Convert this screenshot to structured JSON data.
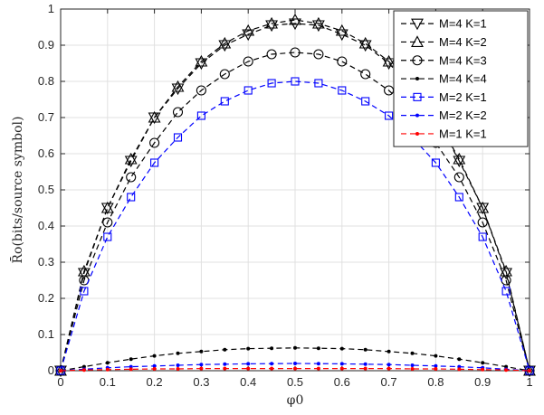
{
  "chart_data": {
    "type": "line",
    "xlabel": "φ0",
    "ylabel": "R̄o(bits/source symbol)",
    "xlim": [
      0,
      1
    ],
    "ylim": [
      0,
      1
    ],
    "xticks": [
      0,
      0.1,
      0.2,
      0.3,
      0.4,
      0.5,
      0.6,
      0.7,
      0.8,
      0.9,
      1
    ],
    "yticks": [
      0,
      0.1,
      0.2,
      0.3,
      0.4,
      0.5,
      0.6,
      0.7,
      0.8,
      0.9,
      1
    ],
    "grid": true,
    "legend_position": "top-right",
    "x": [
      0,
      0.05,
      0.1,
      0.15,
      0.2,
      0.25,
      0.3,
      0.35,
      0.4,
      0.45,
      0.5,
      0.55,
      0.6,
      0.65,
      0.7,
      0.75,
      0.8,
      0.85,
      0.9,
      0.95,
      1
    ],
    "series": [
      {
        "name": "M=4 K=1",
        "color": "#000000",
        "marker": "triangle-down",
        "values": [
          0,
          0.27,
          0.45,
          0.58,
          0.7,
          0.78,
          0.85,
          0.9,
          0.93,
          0.955,
          0.96,
          0.955,
          0.93,
          0.9,
          0.85,
          0.78,
          0.7,
          0.58,
          0.45,
          0.27,
          0
        ]
      },
      {
        "name": "M=4 K=2",
        "color": "#000000",
        "marker": "triangle-up",
        "values": [
          0,
          0.275,
          0.45,
          0.585,
          0.7,
          0.785,
          0.855,
          0.905,
          0.94,
          0.96,
          0.97,
          0.96,
          0.94,
          0.905,
          0.855,
          0.785,
          0.7,
          0.585,
          0.45,
          0.275,
          0
        ]
      },
      {
        "name": "M=4 K=3",
        "color": "#000000",
        "marker": "circle",
        "values": [
          0,
          0.25,
          0.41,
          0.535,
          0.63,
          0.715,
          0.775,
          0.82,
          0.855,
          0.875,
          0.88,
          0.875,
          0.855,
          0.82,
          0.775,
          0.715,
          0.63,
          0.535,
          0.41,
          0.25,
          0
        ]
      },
      {
        "name": "M=4 K=4",
        "color": "#000000",
        "marker": "dot",
        "values": [
          0,
          0.011,
          0.022,
          0.032,
          0.041,
          0.048,
          0.053,
          0.058,
          0.061,
          0.062,
          0.063,
          0.062,
          0.061,
          0.058,
          0.053,
          0.048,
          0.041,
          0.032,
          0.022,
          0.011,
          0
        ]
      },
      {
        "name": "M=2 K=1",
        "color": "#0000ff",
        "marker": "square",
        "values": [
          0,
          0.22,
          0.37,
          0.48,
          0.575,
          0.645,
          0.705,
          0.745,
          0.775,
          0.795,
          0.8,
          0.795,
          0.775,
          0.745,
          0.705,
          0.645,
          0.575,
          0.48,
          0.37,
          0.22,
          0
        ]
      },
      {
        "name": "M=2 K=2",
        "color": "#0000ff",
        "marker": "dot",
        "values": [
          0,
          0.004,
          0.008,
          0.011,
          0.013,
          0.015,
          0.017,
          0.018,
          0.019,
          0.0195,
          0.02,
          0.0195,
          0.019,
          0.018,
          0.017,
          0.015,
          0.013,
          0.011,
          0.008,
          0.004,
          0
        ]
      },
      {
        "name": "M=1 K=1",
        "color": "#ff0000",
        "marker": "dot",
        "values": [
          0,
          0.002,
          0.003,
          0.004,
          0.005,
          0.005,
          0.006,
          0.006,
          0.006,
          0.006,
          0.006,
          0.006,
          0.006,
          0.006,
          0.006,
          0.005,
          0.005,
          0.004,
          0.003,
          0.002,
          0
        ]
      }
    ]
  }
}
